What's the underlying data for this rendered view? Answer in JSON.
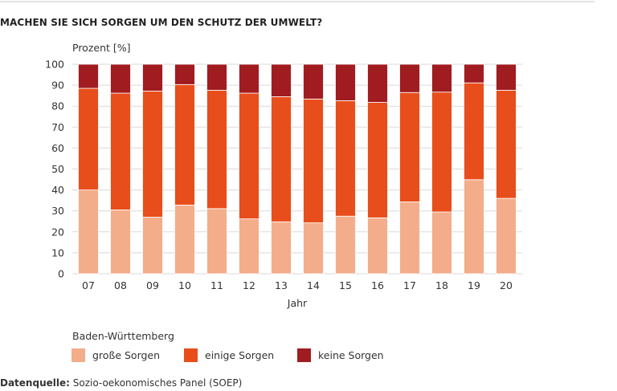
{
  "chart_data": {
    "type": "bar",
    "stacked": true,
    "title": "MACHEN SIE SICH SORGEN UM DEN SCHUTZ DER UMWELT?",
    "ylabel": "Prozent [%]",
    "xlabel": "Jahr",
    "ylim": [
      0,
      100
    ],
    "yticks": [
      0,
      10,
      20,
      30,
      40,
      50,
      60,
      70,
      80,
      90,
      100
    ],
    "grid": true,
    "legend_position": "bottom",
    "legend_title": "Baden-Württemberg",
    "categories": [
      "07",
      "08",
      "09",
      "10",
      "11",
      "12",
      "13",
      "14",
      "15",
      "16",
      "17",
      "18",
      "19",
      "20"
    ],
    "series": [
      {
        "name": "große Sorgen",
        "color": "#f4ad8a",
        "values": [
          40.0,
          30.5,
          27.0,
          32.8,
          31.1,
          26.2,
          24.8,
          24.3,
          27.5,
          26.7,
          34.3,
          29.5,
          44.9,
          36.0
        ]
      },
      {
        "name": "einige Sorgen",
        "color": "#e84e1b",
        "values": [
          48.5,
          55.7,
          60.2,
          57.5,
          56.5,
          60.0,
          59.7,
          59.1,
          55.1,
          55.1,
          52.2,
          57.2,
          46.2,
          51.6
        ]
      },
      {
        "name": "keine Sorgen",
        "color": "#a01c21",
        "values": [
          11.5,
          13.8,
          12.8,
          9.7,
          12.4,
          13.8,
          15.5,
          16.6,
          17.4,
          18.2,
          13.5,
          13.3,
          8.9,
          12.4
        ]
      }
    ]
  },
  "source": {
    "label": "Datenquelle:",
    "text": "Sozio-oekonomisches Panel (SOEP)"
  }
}
